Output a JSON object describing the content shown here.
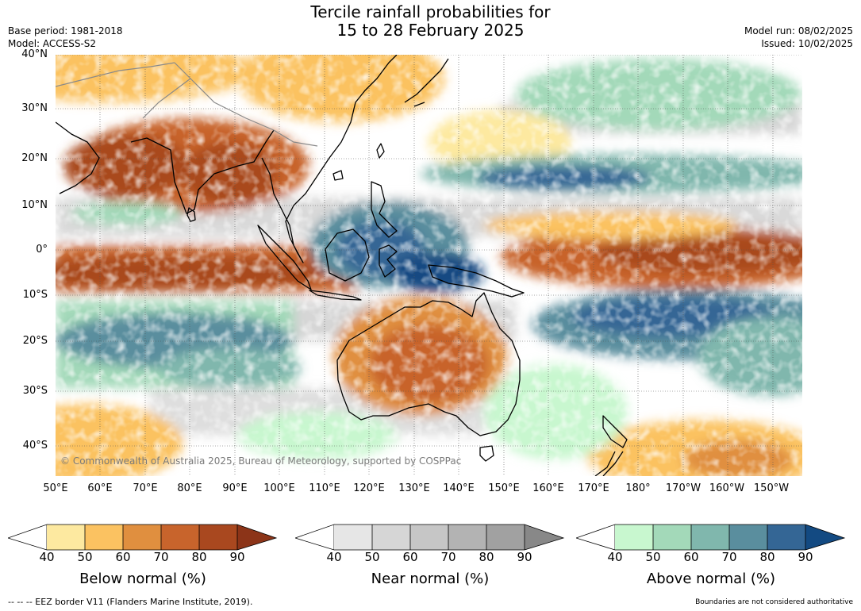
{
  "title": {
    "line1": "Tercile rainfall probabilities for",
    "line2": "15 to 28 February 2025"
  },
  "meta": {
    "base_period": "Base period: 1981-2018",
    "model": "Model: ACCESS-S2",
    "model_run": "Model run: 08/02/2025",
    "issued": "Issued: 10/02/2025"
  },
  "axes": {
    "latitudes": [
      "40°N",
      "30°N",
      "20°N",
      "10°N",
      "0°",
      "10°S",
      "20°S",
      "30°S",
      "40°S"
    ],
    "longitudes": [
      "50°E",
      "60°E",
      "70°E",
      "80°E",
      "90°E",
      "100°E",
      "110°E",
      "120°E",
      "130°E",
      "140°E",
      "150°E",
      "160°E",
      "170°E",
      "180°",
      "170°W",
      "160°W",
      "150°W"
    ]
  },
  "copyright": "© Commonwealth of Australia 2025, Bureau of Meteorology, supported by COSPPac",
  "colorbars": [
    {
      "label": "Below normal (%)",
      "ticks": [
        "40",
        "50",
        "60",
        "70",
        "80",
        "90"
      ],
      "colors": [
        "#fde9a0",
        "#fbc261",
        "#e08f3f",
        "#c8642c",
        "#a9481f",
        "#8c3418"
      ]
    },
    {
      "label": "Near normal (%)",
      "ticks": [
        "40",
        "50",
        "60",
        "70",
        "80",
        "90"
      ],
      "colors": [
        "#e6e6e6",
        "#d6d6d6",
        "#c6c6c6",
        "#b3b3b3",
        "#a1a1a1",
        "#888888"
      ]
    },
    {
      "label": "Above normal (%)",
      "ticks": [
        "40",
        "50",
        "60",
        "70",
        "80",
        "90"
      ],
      "colors": [
        "#c8f7cf",
        "#a3d9b9",
        "#80b7ad",
        "#5a8e9e",
        "#346695",
        "#134a82"
      ]
    }
  ],
  "footer": {
    "eez": "--  --  -- EEZ border V11 (Flanders Marine Institute, 2019).",
    "disclaimer": "Boundaries are not considered authoritative"
  }
}
